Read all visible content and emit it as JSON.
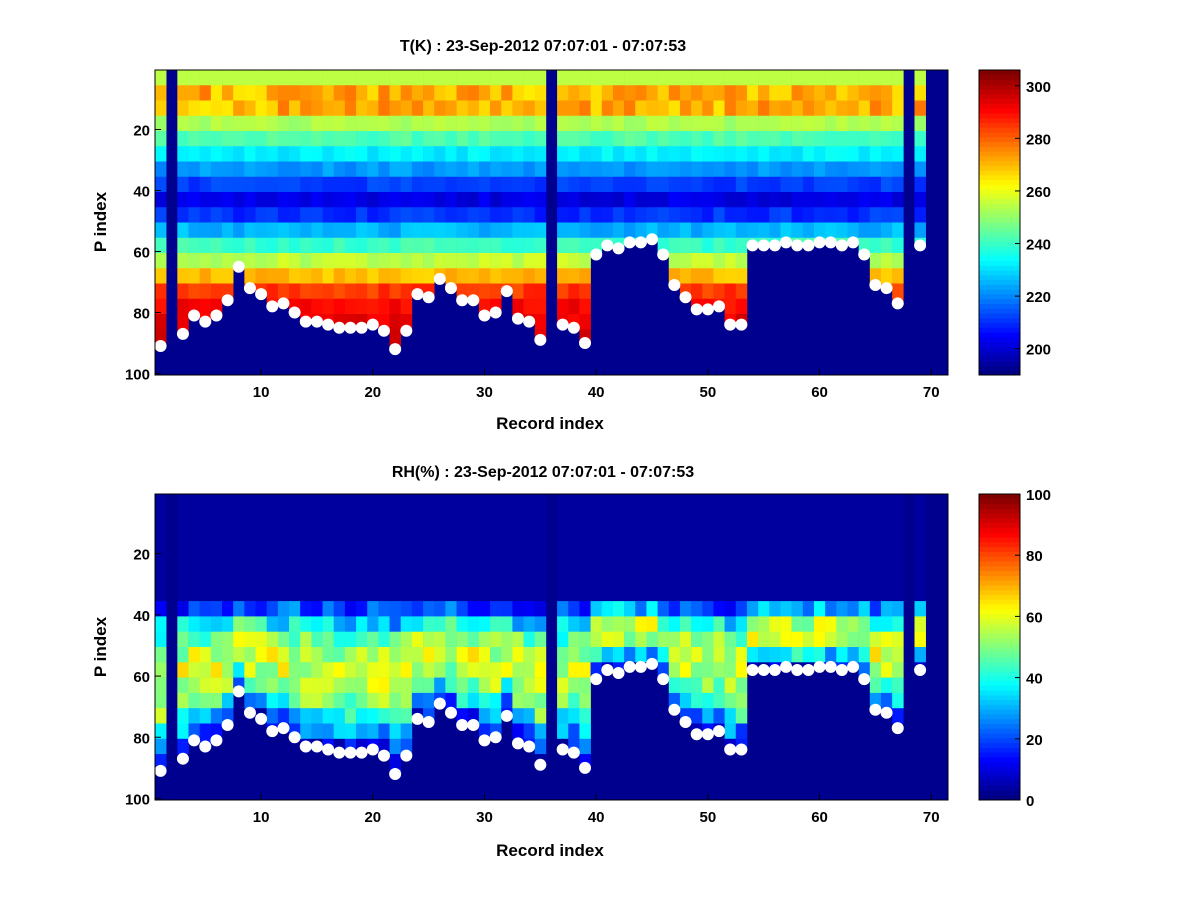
{
  "chart_data": [
    {
      "type": "heatmap",
      "title": "T(K) : 23-Sep-2012 07:07:01 - 07:07:53",
      "xlabel": "Record index",
      "ylabel": "P index",
      "xlim": [
        0.5,
        71.5
      ],
      "ylim": [
        100.5,
        0.5
      ],
      "xticks": [
        "10",
        "20",
        "30",
        "40",
        "50",
        "60",
        "70"
      ],
      "yticks": [
        "20",
        "40",
        "60",
        "80",
        "100"
      ],
      "colorbar": {
        "min": 190,
        "max": 306,
        "ticks": [
          "200",
          "220",
          "240",
          "260",
          "280",
          "300"
        ],
        "colormap": "jet"
      },
      "surface_index": [
        91,
        0,
        87,
        81,
        83,
        81,
        76,
        65,
        72,
        74,
        78,
        77,
        80,
        83,
        83,
        84,
        85,
        85,
        85,
        84,
        86,
        92,
        86,
        74,
        75,
        69,
        72,
        76,
        76,
        81,
        80,
        73,
        82,
        83,
        89,
        0,
        84,
        85,
        90,
        61,
        58,
        59,
        57,
        57,
        56,
        61,
        71,
        75,
        79,
        79,
        78,
        84,
        84,
        58,
        58,
        58,
        57,
        58,
        58,
        57,
        57,
        58,
        57,
        61,
        71,
        72,
        77,
        0,
        58,
        0
      ],
      "marker_color": "#ffffff",
      "fill_color": "#00008f"
    },
    {
      "type": "heatmap",
      "title": "RH(%) : 23-Sep-2012 07:07:01 - 07:07:53",
      "xlabel": "Record index",
      "ylabel": "P index",
      "xlim": [
        0.5,
        71.5
      ],
      "ylim": [
        100.5,
        0.5
      ],
      "xticks": [
        "10",
        "20",
        "30",
        "40",
        "50",
        "60",
        "70"
      ],
      "yticks": [
        "20",
        "40",
        "60",
        "80",
        "100"
      ],
      "colorbar": {
        "min": 0,
        "max": 100,
        "ticks": [
          "0",
          "20",
          "40",
          "60",
          "80",
          "100"
        ],
        "colormap": "jet"
      },
      "surface_index": [
        91,
        0,
        87,
        81,
        83,
        81,
        76,
        65,
        72,
        74,
        78,
        77,
        80,
        83,
        83,
        84,
        85,
        85,
        85,
        84,
        86,
        92,
        86,
        74,
        75,
        69,
        72,
        76,
        76,
        81,
        80,
        73,
        82,
        83,
        89,
        0,
        84,
        85,
        90,
        61,
        58,
        59,
        57,
        57,
        56,
        61,
        71,
        75,
        79,
        79,
        78,
        84,
        84,
        58,
        58,
        58,
        57,
        58,
        58,
        57,
        57,
        58,
        57,
        61,
        71,
        72,
        77,
        0,
        58,
        0
      ],
      "marker_color": "#ffffff",
      "fill_color": "#00008f"
    }
  ]
}
